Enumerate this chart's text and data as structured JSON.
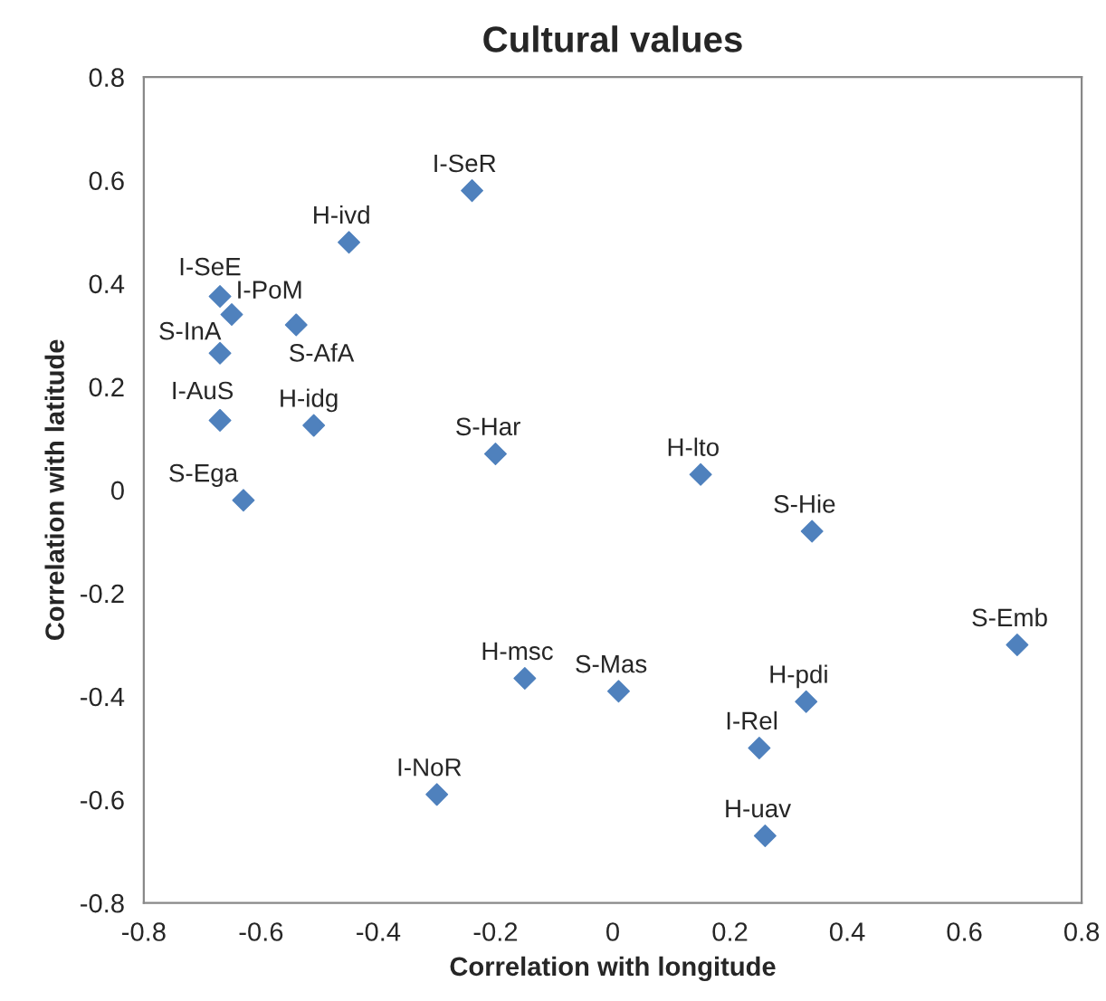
{
  "chart_data": {
    "type": "scatter",
    "title": "Cultural values",
    "xlabel": "Correlation with longitude",
    "ylabel": "Correlation with latitude",
    "xlim": [
      -0.8,
      0.8
    ],
    "ylim": [
      -0.8,
      0.8
    ],
    "xticks": [
      {
        "value": -0.8,
        "label": "-0.8"
      },
      {
        "value": -0.6,
        "label": "-0.6"
      },
      {
        "value": -0.4,
        "label": "-0.4"
      },
      {
        "value": -0.2,
        "label": "-0.2"
      },
      0,
      0.2,
      0.4,
      0.6,
      0.8
    ],
    "yticks": [
      {
        "value": -0.8,
        "label": "-0.8"
      },
      {
        "value": -0.6,
        "label": "-0.6"
      },
      {
        "value": -0.4,
        "label": "-0.4"
      },
      {
        "value": -0.2,
        "label": "-0.2"
      },
      0,
      0.2,
      0.4,
      0.6,
      0.8
    ],
    "grid": false,
    "marker": "diamond",
    "series": [
      {
        "color": "#4f81bd",
        "x": [
          -0.24,
          -0.45,
          -0.67,
          -0.65,
          -0.54,
          -0.67,
          -0.67,
          -0.51,
          -0.2,
          -0.63,
          0.15,
          0.34,
          0.69,
          -0.15,
          0.01,
          0.33,
          0.25,
          -0.3,
          0.26
        ],
        "values": [
          0.58,
          0.48,
          0.375,
          0.34,
          0.32,
          0.265,
          0.135,
          0.125,
          0.07,
          -0.02,
          0.03,
          -0.08,
          -0.3,
          -0.365,
          -0.39,
          -0.41,
          -0.5,
          -0.59,
          -0.67
        ]
      }
    ],
    "annotations": [
      {
        "text": "I-SeR",
        "x": -0.24,
        "y": 0.58
      },
      {
        "text": "H-ivd",
        "x": -0.45,
        "y": 0.48
      },
      {
        "text": "I-SeE",
        "x": -0.67,
        "y": 0.375
      },
      {
        "text": "I-PoM",
        "x": -0.65,
        "y": 0.34
      },
      {
        "text": "S-AfA",
        "x": -0.54,
        "y": 0.32
      },
      {
        "text": "S-InA",
        "x": -0.67,
        "y": 0.265
      },
      {
        "text": "I-AuS",
        "x": -0.67,
        "y": 0.135
      },
      {
        "text": "H-idg",
        "x": -0.51,
        "y": 0.125
      },
      {
        "text": "S-Har",
        "x": -0.2,
        "y": 0.07
      },
      {
        "text": "S-Ega",
        "x": -0.63,
        "y": -0.02
      },
      {
        "text": "H-lto",
        "x": 0.15,
        "y": 0.03
      },
      {
        "text": "S-Hie",
        "x": 0.34,
        "y": -0.08
      },
      {
        "text": "S-Emb",
        "x": 0.69,
        "y": -0.3
      },
      {
        "text": "H-msc",
        "x": -0.15,
        "y": -0.365
      },
      {
        "text": "S-Mas",
        "x": 0.01,
        "y": -0.39
      },
      {
        "text": "H-pdi",
        "x": 0.33,
        "y": -0.41
      },
      {
        "text": "I-Rel",
        "x": 0.25,
        "y": -0.5
      },
      {
        "text": "I-NoR",
        "x": -0.3,
        "y": -0.59
      },
      {
        "text": "H-uav",
        "x": 0.26,
        "y": -0.67
      }
    ]
  }
}
